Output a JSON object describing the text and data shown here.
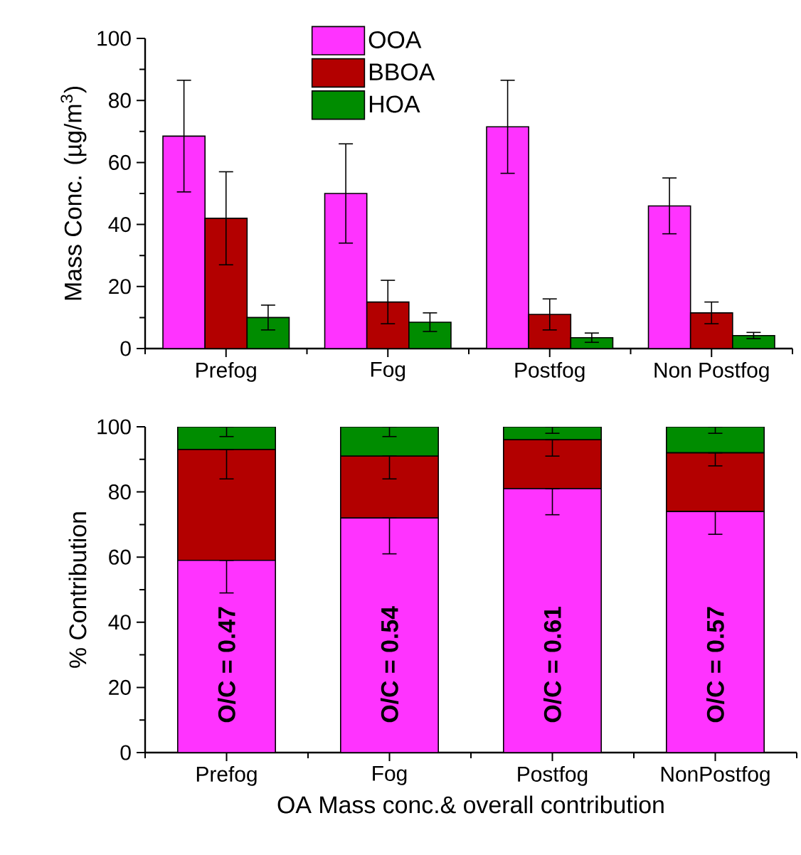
{
  "chart_data": [
    {
      "type": "bar",
      "ylabel": "Mass Conc.  (µg/m$^{3}$)",
      "categories": [
        "Prefog",
        "Fog",
        "Postfog",
        "Non Postfog"
      ],
      "ylim": [
        0,
        100
      ],
      "yticks": [
        0,
        20,
        40,
        60,
        80,
        100
      ],
      "legend": "top",
      "series": [
        {
          "name": "OOA",
          "color": "#ff33ff",
          "values": [
            68.5,
            50,
            71.5,
            46
          ],
          "errors": [
            18,
            16,
            15,
            9
          ]
        },
        {
          "name": "BBOA",
          "color": "#b30000",
          "values": [
            42,
            15,
            11,
            11.5
          ],
          "errors": [
            15,
            7,
            5,
            3.5
          ]
        },
        {
          "name": "HOA",
          "color": "#008c00",
          "values": [
            10,
            8.5,
            3.5,
            4.2
          ],
          "errors": [
            4,
            3,
            1.5,
            1
          ]
        }
      ]
    },
    {
      "type": "bar",
      "stacked": true,
      "ylabel": "% Contribution",
      "xlabel": "OA Mass conc.& overall contribution",
      "categories": [
        "Prefog",
        "Fog",
        "Postfog",
        "NonPostfog"
      ],
      "ylim": [
        0,
        100
      ],
      "yticks": [
        0,
        20,
        40,
        60,
        80,
        100
      ],
      "series": [
        {
          "color": "#ff33ff",
          "values": [
            59,
            72,
            81,
            74
          ],
          "errors": [
            [
              49,
              59
            ],
            [
              61,
              72
            ],
            [
              73,
              81
            ],
            [
              67,
              74
            ]
          ]
        },
        {
          "color": "#b30000",
          "values": [
            34,
            19,
            15,
            18
          ],
          "errors": [
            [
              84,
              93
            ],
            [
              84,
              91
            ],
            [
              91,
              96
            ],
            [
              88,
              92
            ]
          ]
        },
        {
          "color": "#008c00",
          "values": [
            7,
            9,
            4,
            8
          ],
          "errors": [
            [
              97,
              100
            ],
            [
              97,
              100
            ],
            [
              98,
              100
            ],
            [
              98,
              100
            ]
          ]
        }
      ],
      "annotations": [
        "O/C = 0.47",
        "O/C = 0.54",
        "O/C = 0.61",
        "O/C = 0.57"
      ]
    }
  ]
}
